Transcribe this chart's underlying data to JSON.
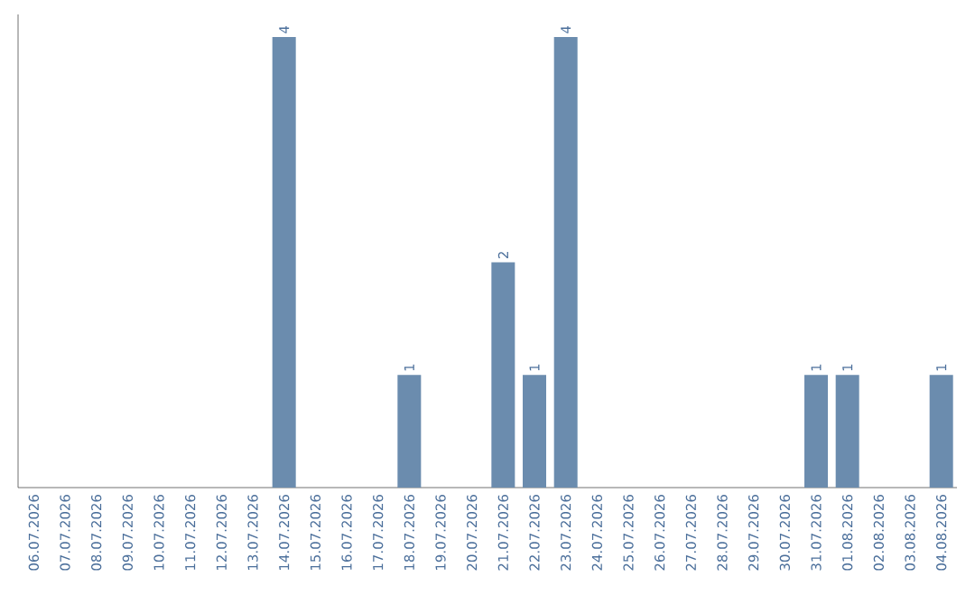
{
  "chart_data": {
    "type": "bar",
    "categories": [
      "06.07.2026",
      "07.07.2026",
      "08.07.2026",
      "09.07.2026",
      "10.07.2026",
      "11.07.2026",
      "12.07.2026",
      "13.07.2026",
      "14.07.2026",
      "15.07.2026",
      "16.07.2026",
      "17.07.2026",
      "18.07.2026",
      "19.07.2026",
      "20.07.2026",
      "21.07.2026",
      "22.07.2026",
      "23.07.2026",
      "24.07.2026",
      "25.07.2026",
      "26.07.2026",
      "27.07.2026",
      "28.07.2026",
      "29.07.2026",
      "30.07.2026",
      "31.07.2026",
      "01.08.2026",
      "02.08.2026",
      "03.08.2026",
      "04.08.2026"
    ],
    "values": [
      0,
      0,
      0,
      0,
      0,
      0,
      0,
      0,
      4,
      0,
      0,
      0,
      1,
      0,
      0,
      2,
      1,
      4,
      0,
      0,
      0,
      0,
      0,
      0,
      0,
      1,
      1,
      0,
      0,
      1
    ],
    "value_labels": [
      null,
      null,
      null,
      null,
      null,
      null,
      null,
      null,
      "4",
      null,
      null,
      null,
      "1",
      null,
      null,
      "2",
      "1",
      "4",
      null,
      null,
      null,
      null,
      null,
      null,
      null,
      "1",
      "1",
      null,
      null,
      "1"
    ],
    "color": "#6b8cae",
    "grid": false,
    "tick_labels": "x"
  }
}
